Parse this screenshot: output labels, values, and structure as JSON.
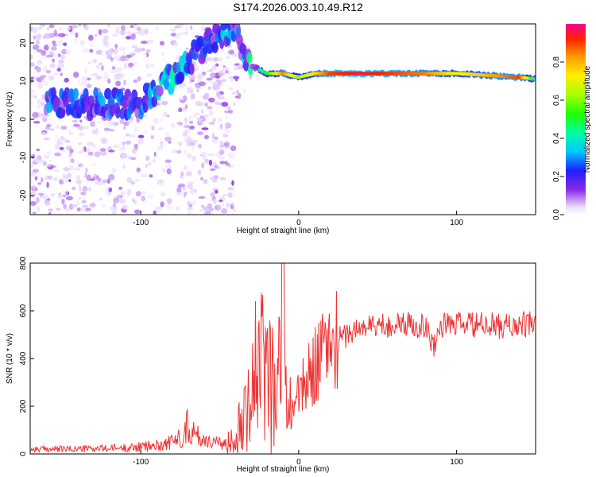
{
  "title": "S174.2026.003.10.49.R12",
  "chart_data": [
    {
      "type": "heatmap",
      "xlabel": "Height of straight line (km)",
      "ylabel": "Frequency (Hz)",
      "xlim": [
        -170,
        150
      ],
      "ylim": [
        -25,
        25
      ],
      "xticks": [
        -100,
        0,
        100
      ],
      "yticks": [
        -20,
        -10,
        0,
        10,
        20
      ],
      "ridge": {
        "description": "dominant frequency ridge",
        "x": [
          -100,
          -90,
          -80,
          -70,
          -60,
          -50,
          -40,
          -30,
          -20,
          -10,
          0,
          10,
          20,
          40,
          60,
          80,
          100,
          120,
          140,
          150
        ],
        "freq": [
          4,
          8,
          11,
          15,
          19,
          22,
          23,
          14,
          12,
          12,
          11,
          12,
          12,
          12,
          12,
          12,
          12,
          11.5,
          11,
          10.5
        ],
        "amplitude": [
          0.2,
          0.25,
          0.3,
          0.25,
          0.2,
          0.25,
          0.2,
          0.3,
          0.5,
          0.85,
          0.6,
          0.75,
          0.9,
          0.95,
          0.9,
          0.85,
          0.7,
          0.8,
          0.9,
          0.4
        ]
      },
      "colorbar": {
        "label": "Normalized spectral amplitude",
        "range": [
          0.0,
          1.0
        ],
        "ticks": [
          "0.0",
          "0.2",
          "0.4",
          "0.6",
          "0.8"
        ]
      }
    },
    {
      "type": "line",
      "xlabel": "Height of straight line (km)",
      "ylabel": "SNR (10 * v/v)",
      "xlim": [
        -170,
        150
      ],
      "ylim": [
        0,
        800
      ],
      "xticks": [
        -100,
        0,
        100
      ],
      "yticks": [
        0,
        200,
        400,
        600,
        800
      ],
      "series": [
        {
          "name": "SNR",
          "color": "#ee3333",
          "x": [
            -170,
            -150,
            -130,
            -110,
            -90,
            -80,
            -75,
            -70,
            -65,
            -60,
            -55,
            -50,
            -45,
            -40,
            -35,
            -30,
            -25,
            -20,
            -15,
            -12,
            -10,
            -8,
            -5,
            0,
            5,
            10,
            15,
            20,
            30,
            40,
            50,
            60,
            70,
            80,
            85,
            90,
            100,
            110,
            120,
            130,
            140,
            150
          ],
          "y": [
            20,
            20,
            22,
            25,
            35,
            50,
            70,
            120,
            80,
            60,
            55,
            40,
            45,
            80,
            200,
            300,
            350,
            380,
            300,
            320,
            450,
            200,
            180,
            250,
            300,
            380,
            420,
            460,
            500,
            530,
            540,
            540,
            545,
            540,
            450,
            540,
            545,
            540,
            540,
            535,
            540,
            545
          ]
        }
      ]
    }
  ]
}
